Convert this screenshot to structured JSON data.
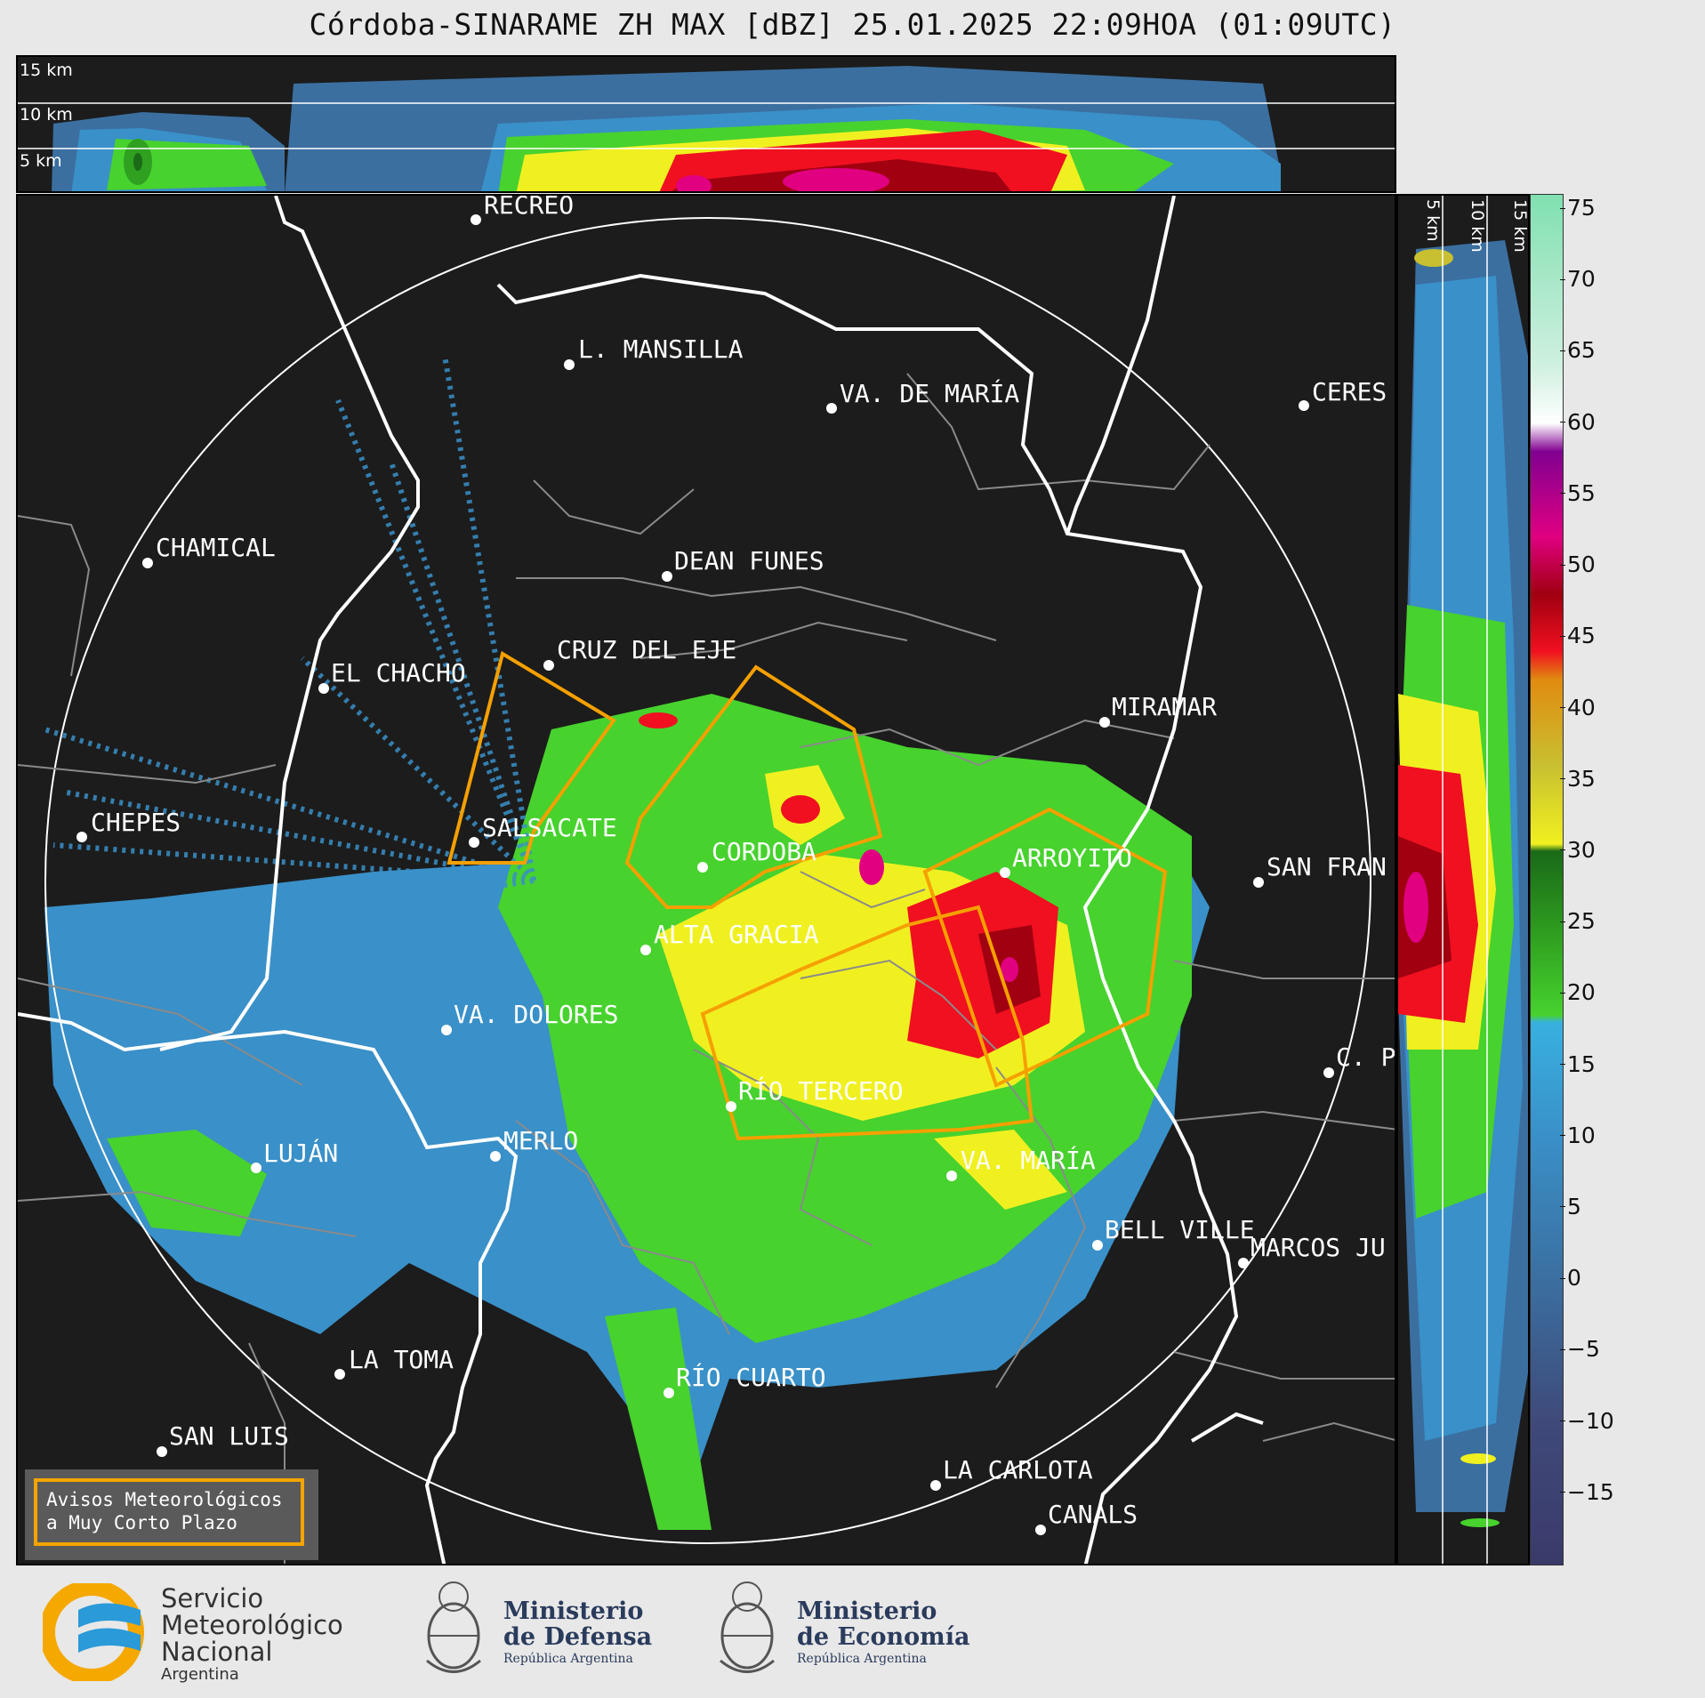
{
  "title": "Córdoba-SINARAME ZH MAX [dBZ] 25.01.2025 22:09HOA (01:09UTC)",
  "top_panel": {
    "height_labels": [
      "15 km",
      "10 km",
      "5 km"
    ]
  },
  "right_panel": {
    "height_labels": [
      "5 km",
      "10 km",
      "15 km"
    ]
  },
  "colorbar": {
    "unit": "dBZ",
    "ticks": [
      "75",
      "70",
      "65",
      "60",
      "55",
      "50",
      "45",
      "40",
      "35",
      "30",
      "25",
      "20",
      "15",
      "10",
      "5",
      "0",
      "−5",
      "−10",
      "−15"
    ],
    "range": [
      -20,
      76
    ],
    "stops": [
      {
        "v": -20,
        "c": "#3a3a6a"
      },
      {
        "v": -10,
        "c": "#3f4a7a"
      },
      {
        "v": 0,
        "c": "#3b6fa0"
      },
      {
        "v": 10,
        "c": "#3a90c8"
      },
      {
        "v": 18,
        "c": "#38b0e0"
      },
      {
        "v": 18.5,
        "c": "#47d22e"
      },
      {
        "v": 24,
        "c": "#2fa020"
      },
      {
        "v": 30,
        "c": "#1a6a18"
      },
      {
        "v": 30.5,
        "c": "#f0f020"
      },
      {
        "v": 36,
        "c": "#c8c030"
      },
      {
        "v": 42,
        "c": "#e08c10"
      },
      {
        "v": 44,
        "c": "#f01020"
      },
      {
        "v": 48,
        "c": "#a00010"
      },
      {
        "v": 52,
        "c": "#e00080"
      },
      {
        "v": 58,
        "c": "#800090"
      },
      {
        "v": 60,
        "c": "#ffffff"
      },
      {
        "v": 64,
        "c": "#d0f0e0"
      },
      {
        "v": 76,
        "c": "#80e0b0"
      }
    ]
  },
  "cities": [
    {
      "name": "RECREO"
    },
    {
      "name": "L. MANSILLA"
    },
    {
      "name": "VA. DE MARÍA"
    },
    {
      "name": "CERES"
    },
    {
      "name": "CHAMICAL"
    },
    {
      "name": "DEAN FUNES"
    },
    {
      "name": "CRUZ DEL EJE"
    },
    {
      "name": "EL CHACHO"
    },
    {
      "name": "MIRAMAR"
    },
    {
      "name": "CHEPES"
    },
    {
      "name": "SALSACATE"
    },
    {
      "name": "CORDOBA"
    },
    {
      "name": "ARROYITO"
    },
    {
      "name": "SAN FRAN"
    },
    {
      "name": "ALTA GRACIA"
    },
    {
      "name": "VA. DOLORES"
    },
    {
      "name": "C. P"
    },
    {
      "name": "RÍO TERCERO"
    },
    {
      "name": "MERLO"
    },
    {
      "name": "LUJÁN"
    },
    {
      "name": "VA. MARÍA"
    },
    {
      "name": "BELL VILLE"
    },
    {
      "name": "MARCOS JU"
    },
    {
      "name": "LA TOMA"
    },
    {
      "name": "RÍO CUARTO"
    },
    {
      "name": "SAN LUIS"
    },
    {
      "name": "LA CARLOTA"
    },
    {
      "name": "CANALS"
    }
  ],
  "warning_legend": {
    "line1": "Avisos Meteorológicos",
    "line2": "a Muy Corto Plazo"
  },
  "logos": {
    "smn": {
      "line1": "Servicio",
      "line2": "Meteorológico",
      "line3": "Nacional",
      "line4": "Argentina"
    },
    "defensa": {
      "line1": "Ministerio",
      "line2": "de Defensa",
      "line3": "República Argentina"
    },
    "economia": {
      "line1": "Ministerio",
      "line2": "de Economía",
      "line3": "República Argentina"
    }
  },
  "colors": {
    "warning_polygon": "#f5a000",
    "background": "#1c1c1c",
    "boundary_major": "#ffffff",
    "boundary_minor": "#8a8a8a"
  }
}
